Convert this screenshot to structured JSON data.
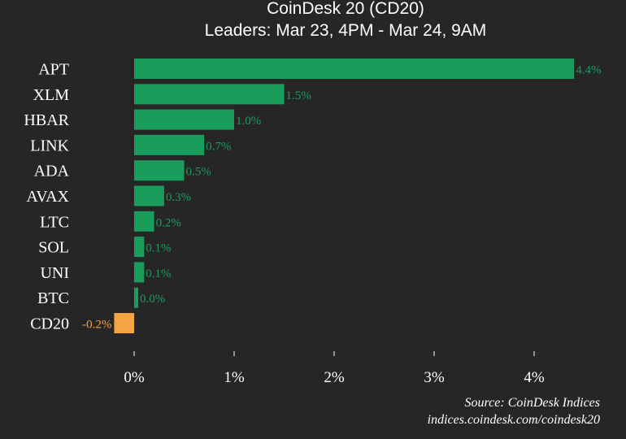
{
  "chart_data": {
    "type": "bar",
    "orientation": "horizontal",
    "title": "CoinDesk 20 (CD20)",
    "subtitle": "Leaders: Mar 23, 4PM - Mar 24, 9AM",
    "categories": [
      "APT",
      "XLM",
      "HBAR",
      "LINK",
      "ADA",
      "AVAX",
      "LTC",
      "SOL",
      "UNI",
      "BTC",
      "CD20"
    ],
    "values": [
      4.4,
      1.5,
      1.0,
      0.7,
      0.5,
      0.3,
      0.2,
      0.1,
      0.1,
      0.0,
      -0.2
    ],
    "value_labels": [
      "4.4%",
      "1.5%",
      "1.0%",
      "0.7%",
      "0.5%",
      "0.3%",
      "0.2%",
      "0.1%",
      "0.1%",
      "0.0%",
      "-0.2%"
    ],
    "xlim": [
      -0.2,
      4.6
    ],
    "xticks": [
      0,
      1,
      2,
      3,
      4
    ],
    "xtick_labels": [
      "0%",
      "1%",
      "2%",
      "3%",
      "4%"
    ],
    "xlabel": "",
    "ylabel": "",
    "grid": false,
    "colors": {
      "positive": "#1a9d5c",
      "negative": "#f5a444",
      "background": "#262626",
      "text": "#ffffff"
    },
    "source": "Source: CoinDesk Indices",
    "url": "indices.coindesk.com/coindesk20"
  }
}
